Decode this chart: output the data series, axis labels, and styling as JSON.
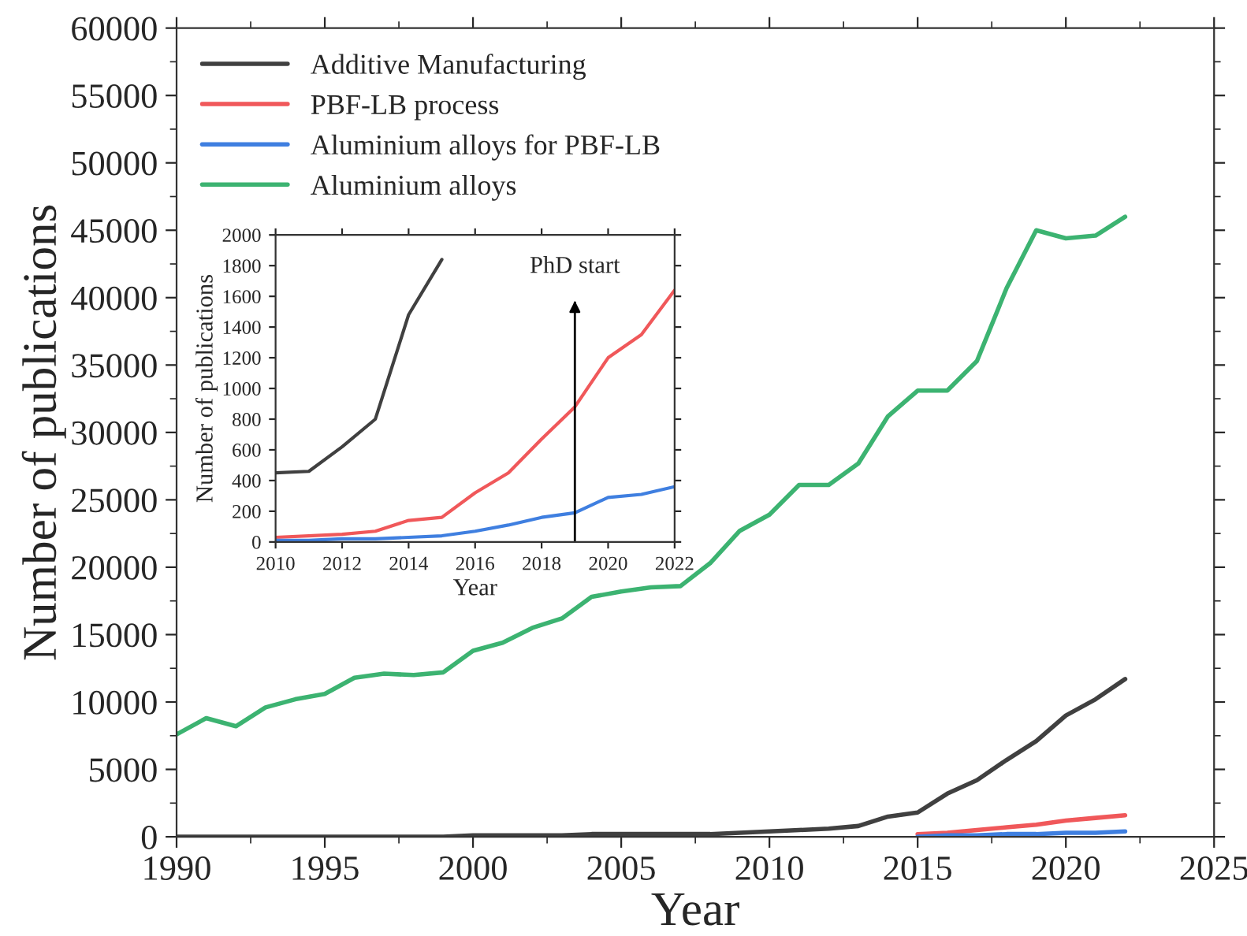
{
  "chart_data": [
    {
      "type": "line",
      "xlabel": "Year",
      "ylabel": "Number of publications",
      "x": [
        1990,
        1991,
        1992,
        1993,
        1994,
        1995,
        1996,
        1997,
        1998,
        1999,
        2000,
        2001,
        2002,
        2003,
        2004,
        2005,
        2006,
        2007,
        2008,
        2009,
        2010,
        2011,
        2012,
        2013,
        2014,
        2015,
        2016,
        2017,
        2018,
        2019,
        2020,
        2021,
        2022
      ],
      "series": [
        {
          "name": "Additive Manufacturing",
          "color": "#404040",
          "values": [
            0,
            0,
            0,
            0,
            0,
            0,
            0,
            0,
            0,
            0,
            100,
            100,
            100,
            100,
            200,
            200,
            200,
            200,
            200,
            300,
            400,
            500,
            600,
            800,
            1500,
            1800,
            3200,
            4200,
            5700,
            7100,
            9000,
            10200,
            11700
          ]
        },
        {
          "name": "PBF-LB process",
          "color": "#f0585a",
          "x": [
            2015,
            2016,
            2017,
            2018,
            2019,
            2020,
            2021,
            2022
          ],
          "values": [
            200,
            300,
            500,
            700,
            900,
            1200,
            1400,
            1600
          ]
        },
        {
          "name": "Aluminium alloys for PBF-LB",
          "color": "#3f7fe0",
          "x": [
            2015,
            2016,
            2017,
            2018,
            2019,
            2020,
            2021,
            2022
          ],
          "values": [
            0,
            100,
            100,
            200,
            200,
            300,
            300,
            400
          ]
        },
        {
          "name": "Aluminium alloys",
          "color": "#3cb371",
          "values": [
            7600,
            8800,
            8200,
            9600,
            10200,
            10600,
            11800,
            12100,
            12000,
            12200,
            13800,
            14400,
            15500,
            16200,
            17800,
            18200,
            18500,
            18600,
            20300,
            22700,
            23900,
            26100,
            26100,
            27700,
            31200,
            33100,
            33100,
            35300,
            40700,
            45000,
            44400,
            44600,
            46000
          ]
        }
      ],
      "xlim": [
        1990,
        2025
      ],
      "xticks": [
        1990,
        1995,
        2000,
        2005,
        2010,
        2015,
        2020,
        2025
      ],
      "ylim": [
        0,
        60000
      ],
      "yticks": [
        0,
        5000,
        10000,
        15000,
        20000,
        25000,
        30000,
        35000,
        40000,
        45000,
        50000,
        55000,
        60000
      ],
      "legend": "top left",
      "grid": false
    },
    {
      "type": "line",
      "xlabel": "Year",
      "ylabel": "Number of publications",
      "series": [
        {
          "color": "#404040",
          "x": [
            2010,
            2011,
            2012,
            2013,
            2014,
            2015
          ],
          "values": [
            450,
            460,
            620,
            800,
            1480,
            1840
          ]
        },
        {
          "color": "#f0585a",
          "x": [
            2010,
            2011,
            2012,
            2013,
            2014,
            2015,
            2016,
            2017,
            2018,
            2019,
            2020,
            2021,
            2022
          ],
          "values": [
            30,
            40,
            50,
            70,
            140,
            160,
            320,
            450,
            670,
            880,
            1200,
            1350,
            1640
          ]
        },
        {
          "color": "#3f7fe0",
          "x": [
            2010,
            2011,
            2012,
            2013,
            2014,
            2015,
            2016,
            2017,
            2018,
            2019,
            2020,
            2021,
            2022
          ],
          "values": [
            10,
            10,
            20,
            20,
            30,
            40,
            70,
            110,
            160,
            190,
            290,
            310,
            360
          ]
        }
      ],
      "ref_lines": [
        {
          "axis": "x",
          "value": 2019,
          "label": "PhD start"
        }
      ],
      "xlim": [
        2010,
        2022
      ],
      "xticks": [
        2010,
        2012,
        2014,
        2016,
        2018,
        2020,
        2022
      ],
      "ylim": [
        0,
        2000
      ],
      "yticks": [
        0,
        200,
        400,
        600,
        800,
        1000,
        1200,
        1400,
        1600,
        1800,
        2000
      ],
      "legend": false,
      "grid": false
    }
  ]
}
